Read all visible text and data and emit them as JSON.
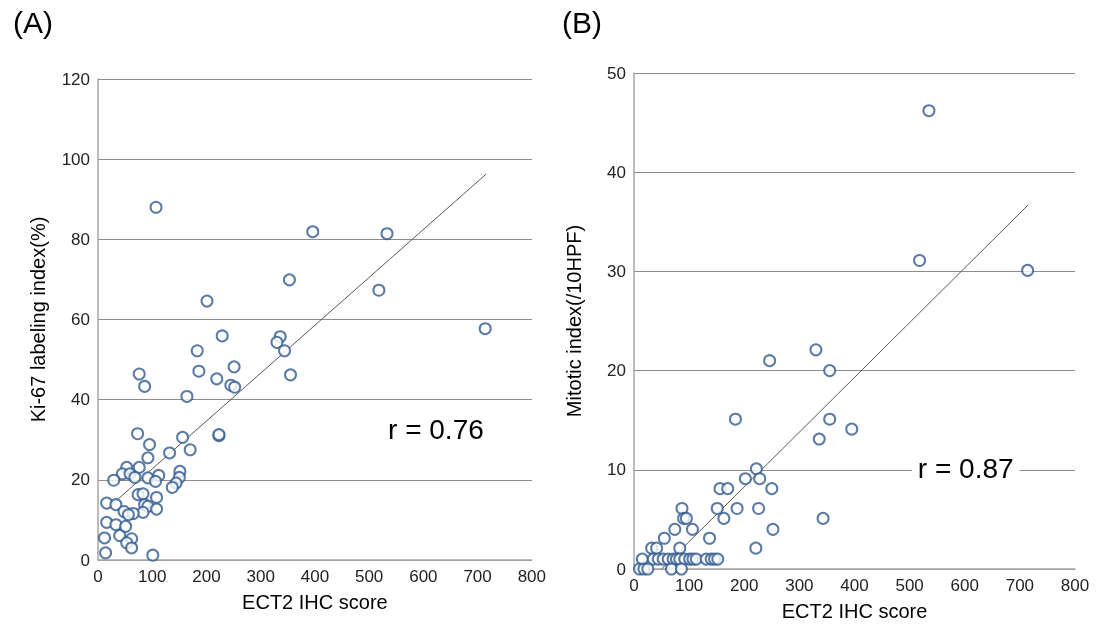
{
  "chart_data": [
    {
      "type": "scatter",
      "title": "(A)",
      "xlabel": "ECT2 IHC score",
      "ylabel": "Ki-67 labeling index(%)",
      "annotations": [
        "r = 0.76"
      ],
      "xlim": [
        0,
        800
      ],
      "xticks": [
        0,
        100,
        200,
        300,
        400,
        500,
        600,
        700,
        800
      ],
      "ylim": [
        0,
        120
      ],
      "yticks": [
        0,
        20,
        40,
        60,
        80,
        100,
        120
      ],
      "grid": "y",
      "marker": "circle",
      "series": [
        {
          "color": "#2f5a8e",
          "x": [
            396,
            533,
            107,
            201,
            353,
            518,
            714,
            229,
            336,
            330,
            183,
            344,
            186,
            251,
            76,
            355,
            86,
            219,
            245,
            252,
            164,
            73,
            223,
            223,
            95,
            156,
            170,
            132,
            92,
            53,
            76,
            45,
            59,
            68,
            29,
            92,
            112,
            106,
            151,
            150,
            144,
            137,
            16,
            33,
            74,
            83,
            108,
            86,
            92,
            83,
            108,
            48,
            65,
            56,
            16,
            33,
            51,
            12,
            40,
            62,
            53,
            62,
            14,
            101
          ],
          "values": [
            81.9,
            81.4,
            88,
            64.6,
            69.9,
            67.3,
            57.7,
            55.9,
            55.7,
            54.3,
            52.2,
            52.2,
            47.1,
            48.2,
            46.4,
            46.2,
            43.3,
            45.2,
            43.6,
            43.1,
            40.8,
            31.5,
            31.0,
            31.3,
            28.8,
            30.6,
            27.5,
            26.7,
            25.5,
            23.1,
            23.1,
            21.5,
            21.5,
            20.6,
            19.9,
            20.5,
            21.1,
            19.6,
            22.1,
            20.6,
            19.2,
            18.1,
            14.2,
            13.8,
            16.3,
            16.5,
            15.6,
            13.8,
            13.4,
            11.9,
            12.7,
            12.1,
            11.6,
            11.3,
            9.4,
            8.8,
            8.4,
            5.5,
            6.1,
            5.3,
            4.3,
            3.0,
            1.8,
            1.2
          ]
        },
        {
          "type": "line",
          "color": "#595959",
          "marker": "none",
          "line_style": "solid",
          "x": [
            16,
            716
          ],
          "values": [
            12.7,
            96.3
          ]
        }
      ]
    },
    {
      "type": "scatter",
      "title": "(B)",
      "xlabel": "ECT2 IHC score",
      "ylabel": "Mitotic index(/10HPF)",
      "annotations": [
        "r = 0.87"
      ],
      "xlim": [
        0,
        800
      ],
      "xticks": [
        0,
        100,
        200,
        300,
        400,
        500,
        600,
        700,
        800
      ],
      "ylim": [
        0,
        50
      ],
      "yticks": [
        0,
        10,
        20,
        30,
        40,
        50
      ],
      "grid": "y",
      "marker": "circle",
      "series": [
        {
          "color": "#2f5a8e",
          "x": [
            535,
            518,
            714,
            330,
            355,
            355,
            336,
            395,
            343,
            246,
            184,
            222,
            202,
            228,
            156,
            170,
            250,
            151,
            187,
            226,
            163,
            252,
            221,
            87,
            90,
            95,
            74,
            106,
            55,
            137,
            32,
            41,
            83,
            15,
            35,
            44,
            53,
            62,
            71,
            77,
            83,
            92,
            101,
            107,
            113,
            131,
            140,
            146,
            152,
            10,
            18,
            25,
            68,
            86
          ],
          "values": [
            46.2,
            31.1,
            30.1,
            22.1,
            20.0,
            15.1,
            13.1,
            14.1,
            5.1,
            21.0,
            15.1,
            10.1,
            9.1,
            9.1,
            8.1,
            8.1,
            8.1,
            6.1,
            6.1,
            6.1,
            5.1,
            4.0,
            2.1,
            6.1,
            5.1,
            5.1,
            4.0,
            4.0,
            3.1,
            3.1,
            2.1,
            2.1,
            2.1,
            1,
            1,
            1,
            1,
            1,
            1,
            1,
            1,
            1,
            1,
            1,
            1,
            1,
            1,
            1,
            1,
            0,
            0,
            0,
            0,
            0
          ]
        },
        {
          "type": "line",
          "color": "#595959",
          "marker": "none",
          "line_style": "solid",
          "x": [
            50,
            715
          ],
          "values": [
            0,
            36.7
          ]
        }
      ]
    }
  ]
}
